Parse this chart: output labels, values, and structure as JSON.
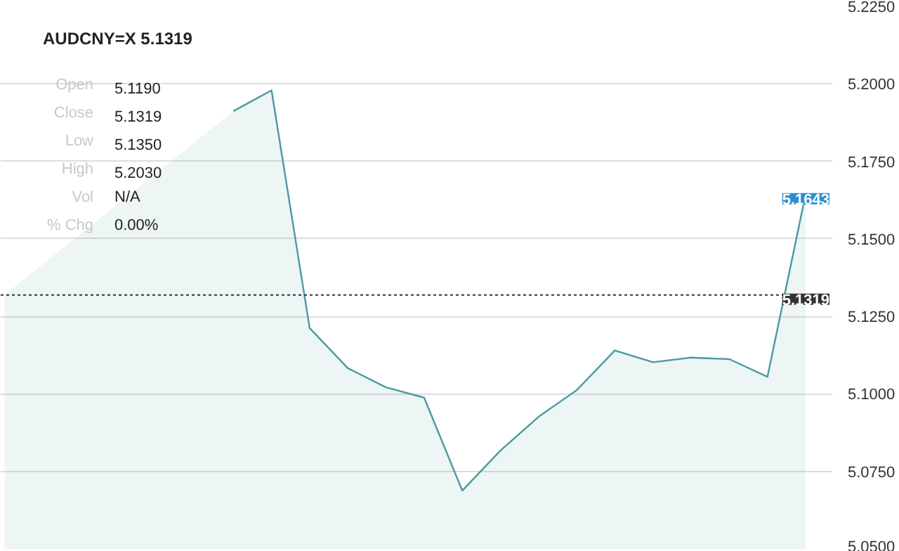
{
  "chart_data": {
    "type": "area",
    "title": "AUDCNY=X 5.1319",
    "categories": [
      null,
      null,
      null,
      null,
      null,
      null,
      null,
      null,
      null,
      null,
      null,
      null,
      null,
      null,
      null,
      null,
      null,
      null,
      null,
      null,
      null,
      null
    ],
    "series": [
      {
        "color": "#4a9aa0",
        "values": [
          5.1319,
          null,
          null,
          null,
          null,
          null,
          5.1912,
          5.1979,
          5.1212,
          5.1083,
          5.1021,
          5.0988,
          5.0688,
          5.0817,
          5.0926,
          5.1012,
          5.114,
          5.1102,
          5.1117,
          5.1112,
          5.1055,
          5.1643
        ]
      }
    ],
    "ylim": [
      5.05,
      5.225
    ],
    "yticks": [
      {
        "value": 5.05,
        "label": "5.0500"
      },
      {
        "value": 5.075,
        "label": "5.0750"
      },
      {
        "value": 5.1,
        "label": "5.1000"
      },
      {
        "value": 5.125,
        "label": "5.1250"
      },
      {
        "value": 5.15,
        "label": "5.1500"
      },
      {
        "value": 5.175,
        "label": "5.1750"
      },
      {
        "value": 5.2,
        "label": "5.2000"
      },
      {
        "value": 5.225,
        "label": "5.2250"
      }
    ],
    "grid": "y",
    "ref_lines": [
      {
        "axis": "y",
        "value": 5.1319,
        "label": "5.1319",
        "color": "#333333",
        "line_style": "dotted"
      }
    ],
    "annotations": [
      {
        "text": "5.1643",
        "y": 5.1643
      },
      "Open",
      "5.1190",
      "Close",
      "5.1319",
      "Low",
      "5.1350",
      "High",
      "5.2030",
      "Vol",
      "N/A",
      "% Chg",
      "0.00%"
    ]
  }
}
